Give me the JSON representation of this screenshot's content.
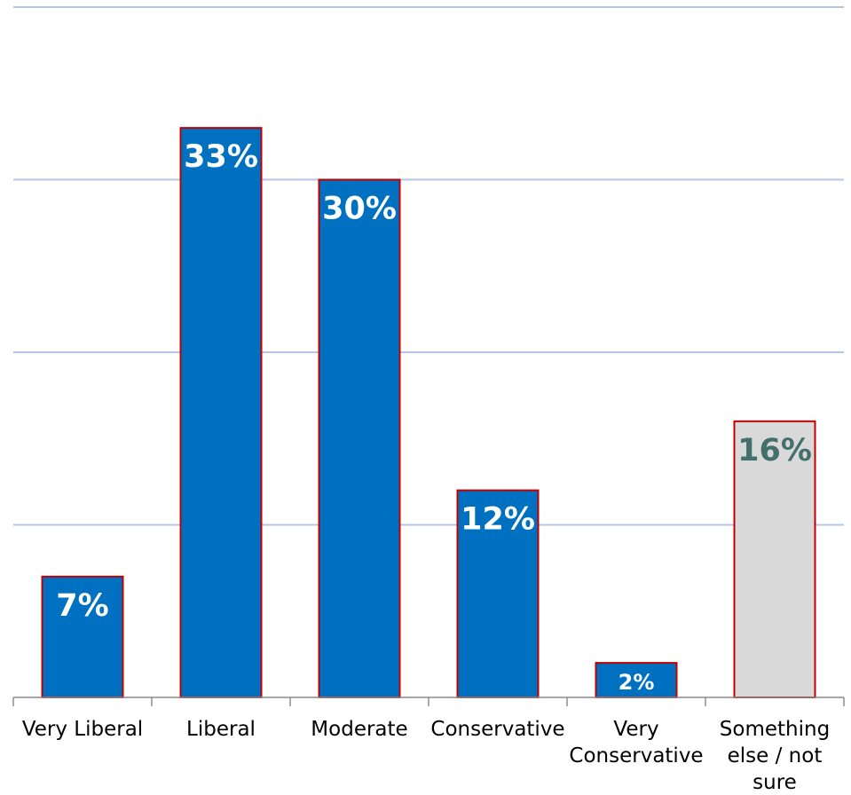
{
  "chart_data": {
    "type": "bar",
    "categories": [
      [
        "Very Liberal"
      ],
      [
        "Liberal"
      ],
      [
        "Moderate"
      ],
      [
        "Conservative"
      ],
      [
        "Very",
        "Conservative"
      ],
      [
        "Something",
        "else / not",
        "sure"
      ]
    ],
    "values": [
      7,
      33,
      30,
      12,
      2,
      16
    ],
    "data_labels": [
      "7%",
      "33%",
      "30%",
      "12%",
      "2%",
      "16%"
    ],
    "ylim": [
      0,
      40
    ],
    "yticks": [
      0,
      10,
      20,
      30,
      40
    ],
    "grid": true,
    "legend": "none",
    "bar_fill_colors": [
      "#0070c0",
      "#0070c0",
      "#0070c0",
      "#0070c0",
      "#0070c0",
      "#d9d9d9"
    ],
    "bar_outline_color": "#c00000",
    "data_label_colors": [
      "#ffffff",
      "#ffffff",
      "#ffffff",
      "#ffffff",
      "#ffffff",
      "#44706c"
    ],
    "gridline_color": "#b4c6e7",
    "axis_color": "#8c8c8c"
  }
}
